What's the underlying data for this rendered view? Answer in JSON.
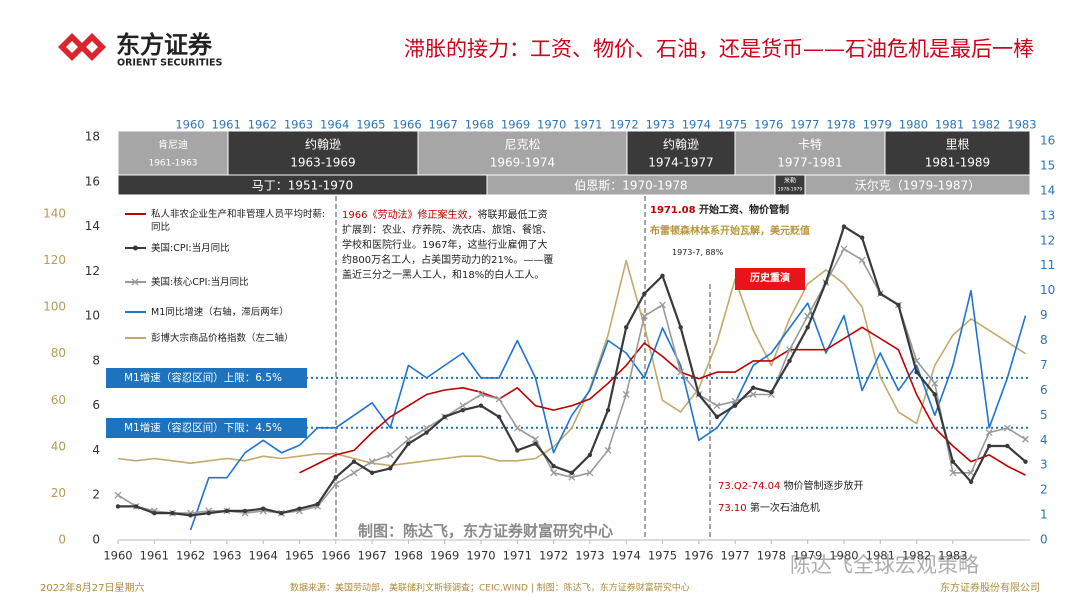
{
  "header": {
    "logo_cn": "东方证券",
    "logo_en": "ORIENT SECURITIES"
  },
  "chart_data": {
    "type": "line",
    "title": "滞胀的接力：工资、物价、石油，还是货币——石油危机是最后一棒",
    "x": [
      1960,
      1960.5,
      1961,
      1961.5,
      1962,
      1962.5,
      1963,
      1963.5,
      1964,
      1964.5,
      1965,
      1965.5,
      1966,
      1966.5,
      1967,
      1967.5,
      1968,
      1968.5,
      1969,
      1969.5,
      1970,
      1970.5,
      1971,
      1971.5,
      1972,
      1972.5,
      1973,
      1973.5,
      1974,
      1974.5,
      1975,
      1975.5,
      1976,
      1976.5,
      1977,
      1977.5,
      1978,
      1978.5,
      1979,
      1979.5,
      1980,
      1980.5,
      1981,
      1981.5,
      1982,
      1982.5,
      1983,
      1983.5,
      1984,
      1984.5,
      1985
    ],
    "xlim": [
      1960,
      1985
    ],
    "xticks": [
      1960,
      1961,
      1962,
      1963,
      1964,
      1965,
      1966,
      1967,
      1968,
      1969,
      1970,
      1971,
      1972,
      1973,
      1974,
      1975,
      1976,
      1977,
      1978,
      1979,
      1980,
      1981,
      1982,
      1983
    ],
    "top_xticks": [
      1960,
      1961,
      1962,
      1963,
      1964,
      1965,
      1966,
      1967,
      1968,
      1969,
      1970,
      1971,
      1972,
      1973,
      1974,
      1975,
      1976,
      1977,
      1978,
      1979,
      1980,
      1981,
      1982,
      1983
    ],
    "ylim": [
      0,
      18
    ],
    "yticks": [
      0,
      2,
      4,
      6,
      8,
      10,
      12,
      14,
      16,
      18
    ],
    "y2lim": [
      0,
      16
    ],
    "y2ticks": [
      0,
      1,
      2,
      3,
      4,
      5,
      6,
      7,
      8,
      9,
      10,
      11,
      12,
      13,
      14,
      15,
      16
    ],
    "y3lim": [
      0,
      140
    ],
    "y3ticks": [
      0,
      20,
      40,
      60,
      80,
      100,
      120,
      140
    ],
    "series": [
      {
        "name": "私人非农企业生产和非管理人员平均时薪:同比",
        "color": "#c00000",
        "marker": "none",
        "values": [
          null,
          null,
          null,
          null,
          null,
          null,
          null,
          null,
          null,
          null,
          3.0,
          3.4,
          3.8,
          4.0,
          4.8,
          5.5,
          6.0,
          6.5,
          6.7,
          6.8,
          6.6,
          6.3,
          6.8,
          6.0,
          5.8,
          6.0,
          6.3,
          7.0,
          7.8,
          8.8,
          8.2,
          7.5,
          7.2,
          7.5,
          7.5,
          8.0,
          8.0,
          8.5,
          8.5,
          8.5,
          9.0,
          9.5,
          9.0,
          8.5,
          6.5,
          5.0,
          4.2,
          3.5,
          3.8,
          3.3,
          2.9
        ]
      },
      {
        "name": "美国:CPI:当月同比",
        "color": "#3a3a3a",
        "marker": "circle",
        "values": [
          1.5,
          1.5,
          1.2,
          1.2,
          1.1,
          1.2,
          1.3,
          1.3,
          1.4,
          1.2,
          1.4,
          1.6,
          2.8,
          3.5,
          3.0,
          3.2,
          4.3,
          4.8,
          5.5,
          5.8,
          6.0,
          5.5,
          4.0,
          4.3,
          3.3,
          3.0,
          3.8,
          5.8,
          9.5,
          11.0,
          11.8,
          9.5,
          6.5,
          5.5,
          6.0,
          6.8,
          6.6,
          8.0,
          9.5,
          11.5,
          14.0,
          13.5,
          11.0,
          10.5,
          7.5,
          6.5,
          3.5,
          2.6,
          4.2,
          4.2,
          3.5
        ]
      },
      {
        "name": "美国:核心CPI:当月同比",
        "color": "#9a9a9a",
        "marker": "x",
        "values": [
          2.0,
          1.5,
          1.3,
          1.2,
          1.2,
          1.3,
          1.3,
          1.2,
          1.3,
          1.2,
          1.3,
          1.5,
          2.5,
          3.0,
          3.5,
          3.8,
          4.5,
          5.0,
          5.5,
          6.0,
          6.5,
          6.3,
          5.0,
          4.5,
          3.0,
          2.8,
          3.0,
          4.0,
          6.5,
          10.0,
          10.5,
          7.5,
          6.5,
          6.0,
          6.2,
          6.5,
          6.5,
          8.5,
          10.0,
          11.5,
          13.0,
          12.5,
          11.0,
          10.5,
          8.0,
          7.0,
          3.0,
          3.0,
          4.8,
          5.0,
          4.5
        ]
      },
      {
        "name": "M1同比增速（右轴，滞后两年）",
        "color": "#1f74d1",
        "marker": "none",
        "axis": "y2",
        "values": [
          null,
          null,
          null,
          null,
          0.4,
          2.5,
          2.5,
          3.5,
          4.0,
          3.5,
          3.8,
          4.5,
          4.5,
          5.0,
          5.5,
          4.5,
          7.0,
          6.5,
          7.0,
          7.5,
          6.5,
          6.5,
          8.0,
          6.5,
          3.5,
          5.0,
          6.0,
          8.0,
          7.5,
          6.5,
          8.5,
          7.0,
          4.0,
          4.5,
          5.5,
          7.0,
          7.5,
          8.5,
          9.5,
          7.5,
          9.0,
          6.0,
          7.5,
          6.0,
          7.0,
          5.0,
          7.0,
          10.0,
          4.5,
          6.5,
          9.0
        ]
      },
      {
        "name": "彭博大宗商品价格指数（左二轴）",
        "color": "#c4a96b",
        "marker": "none",
        "axis": "y3",
        "values": [
          35,
          34,
          35,
          34,
          33,
          34,
          35,
          34,
          36,
          35,
          36,
          37,
          37,
          35,
          33,
          32,
          33,
          34,
          35,
          36,
          36,
          34,
          34,
          35,
          40,
          48,
          65,
          88,
          120,
          92,
          60,
          55,
          65,
          85,
          112,
          90,
          75,
          95,
          110,
          116,
          110,
          100,
          70,
          55,
          50,
          75,
          88,
          95,
          90,
          85,
          80
        ]
      }
    ],
    "reference_lines": [
      {
        "value": 6.5,
        "axis": "y2",
        "label": "M1增速（容忍区间）上限：6.5%"
      },
      {
        "value": 4.5,
        "axis": "y2",
        "label": "M1增速（容忍区间）下限：4.5%"
      }
    ],
    "presidents": [
      {
        "name": "肯尼迪",
        "years": "1961-1963"
      },
      {
        "name": "约翰逊",
        "years": "1963-1969"
      },
      {
        "name": "尼克松",
        "years": "1969-1974"
      },
      {
        "name": "约翰逊",
        "years": "1974-1977"
      },
      {
        "name": "卡特",
        "years": "1977-1981"
      },
      {
        "name": "里根",
        "years": "1981-1989"
      }
    ],
    "fed_chairs": [
      {
        "name": "马丁：1951-1970"
      },
      {
        "name": "伯恩斯：1970-1978"
      },
      {
        "name": "米勒",
        "years": "1978-1979"
      },
      {
        "name": "沃尔克（1979-1987）"
      }
    ],
    "annotations": {
      "law_title": "1966《劳动法》修正案生效，",
      "law_text": "将联邦最低工资扩展到：农业、疗养院、洗衣店、旅馆、餐馆、学校和医院行业。1967年，这些行业雇佣了大约800万名工人，占美国劳动力的21%。——覆盖近三分之一黑人工人，和18%的白人工人。",
      "control_date": "1971.08",
      "control_text": "开始工资、物价管制",
      "bretton": "布雷顿森林体系开始瓦解，美元贬值",
      "peak": "1973-7, 88%",
      "repeat": "历史重演",
      "release_date": "73.Q2-74.04",
      "release_text": "物价管制逐步放开",
      "oil_date": "73.10",
      "oil_text": "第一次石油危机",
      "maker": "制图：陈达飞，东方证券财富研究中心"
    }
  },
  "footer": {
    "date": "2022年8月27日星期六",
    "source": "数据来源：美国劳动部，美联储利文斯顿调查；CEIC,WIND | 制图：陈达飞，东方证券财富研究中心",
    "company": "东方证券股份有限公司"
  },
  "watermark": "陈达飞全球宏观策略"
}
